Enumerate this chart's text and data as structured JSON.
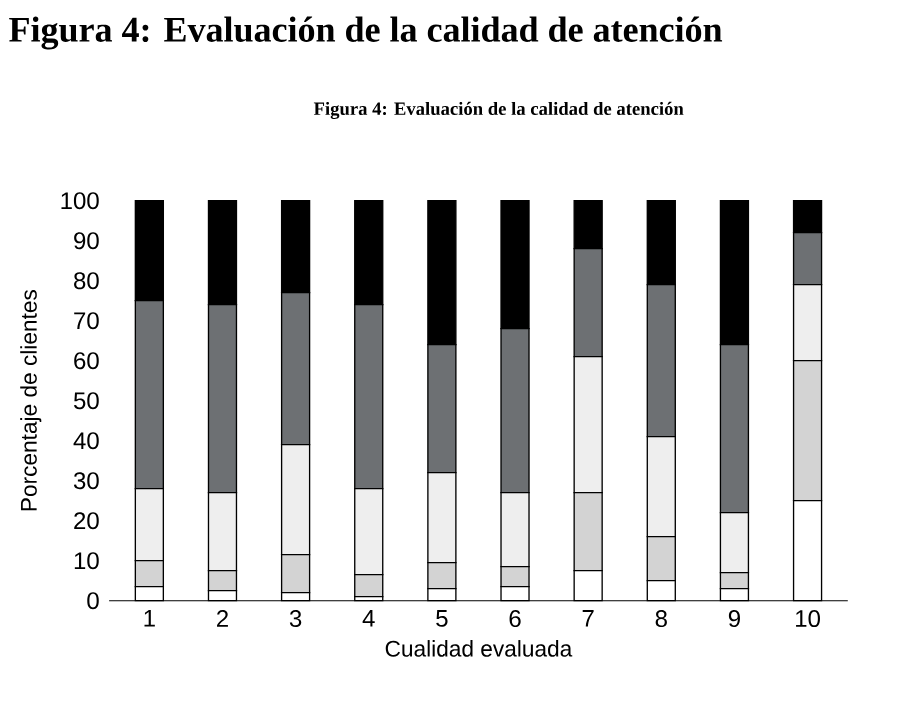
{
  "chart_data": {
    "type": "bar",
    "stacked": true,
    "title": "Figura 4: Evaluación de la calidad de atención",
    "subtitle": "Figura 4: Evaluación de la calidad de atención",
    "xlabel": "Cualidad evaluada",
    "ylabel": "Porcentaje de clientes",
    "categories": [
      "1",
      "2",
      "3",
      "4",
      "5",
      "6",
      "7",
      "8",
      "9",
      "10"
    ],
    "series": [
      {
        "color": "#ffffff",
        "values": [
          3.5,
          2.5,
          2,
          1,
          3,
          3.5,
          7.5,
          5,
          3,
          25
        ]
      },
      {
        "color": "#d3d3d3",
        "values": [
          6.5,
          5,
          9.5,
          5.5,
          6.5,
          5,
          19.5,
          11,
          4,
          35
        ]
      },
      {
        "color": "#eeeeee",
        "values": [
          18,
          19.5,
          27.5,
          21.5,
          22.5,
          18.5,
          34,
          25,
          15,
          19
        ]
      },
      {
        "color": "#6d7073",
        "values": [
          47,
          47,
          38,
          46,
          32,
          41,
          27,
          38,
          42,
          13
        ]
      },
      {
        "color": "#000000",
        "values": [
          25,
          26,
          23,
          26,
          36,
          32,
          12,
          21,
          36,
          8
        ]
      }
    ],
    "ylim": [
      0,
      100
    ],
    "yticks": [
      0,
      10,
      20,
      30,
      40,
      50,
      60,
      70,
      80,
      90,
      100
    ]
  }
}
